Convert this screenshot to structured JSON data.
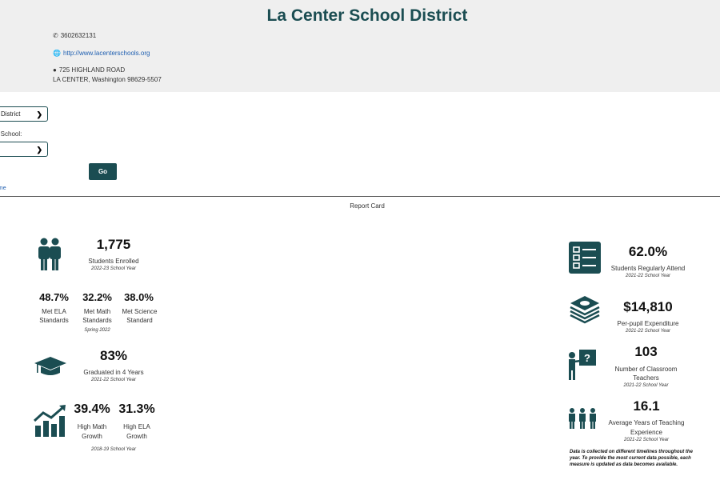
{
  "district": {
    "name": "La Center School District",
    "phone": "3602632131",
    "website": "http://www.lacenterschools.org",
    "address_line1": "725 HIGHLAND ROAD",
    "address_line2": "LA CENTER, Washington 98629-5507"
  },
  "controls": {
    "level_select": "District",
    "school_label": "a School:",
    "school_select": "",
    "go_label": "Go",
    "link_text": "ame"
  },
  "report_card": {
    "title": "Report Card",
    "enrolled": {
      "value": "1,775",
      "label": "Students Enrolled",
      "period": "2022-23 School Year"
    },
    "standards": [
      {
        "value": "48.7%",
        "label1": "Met ELA",
        "label2": "Standards"
      },
      {
        "value": "32.2%",
        "label1": "Met Math",
        "label2": "Standards"
      },
      {
        "value": "38.0%",
        "label1": "Met Science",
        "label2": "Standard"
      }
    ],
    "standards_period": "Spring 2022",
    "graduation": {
      "value": "83%",
      "label": "Graduated in 4 Years",
      "period": "2021-22 School Year"
    },
    "growth": [
      {
        "value": "39.4%",
        "label1": "High Math",
        "label2": "Growth"
      },
      {
        "value": "31.3%",
        "label1": "High ELA",
        "label2": "Growth"
      }
    ],
    "growth_period": "2018-19 School Year",
    "attendance": {
      "value": "62.0%",
      "label": "Students Regularly Attend",
      "period": "2021-22 School Year"
    },
    "expenditure": {
      "value": "$14,810",
      "label": "Per-pupil Expenditure",
      "period": "2021-22 School Year"
    },
    "teachers": {
      "value": "103",
      "label1": "Number of Classroom",
      "label2": "Teachers",
      "period": "2021-22 School Year"
    },
    "experience": {
      "value": "16.1",
      "label1": "Average Years of Teaching",
      "label2": "Experience",
      "period": "2021-22 School Year"
    },
    "note": "Data is collected on different timelines throughout the year. To provide the most current data possible, each measure is updated as data becomes available."
  },
  "colors": {
    "brand": "#1b4d52",
    "link": "#1f5fb0",
    "header_bg": "#efefef"
  }
}
